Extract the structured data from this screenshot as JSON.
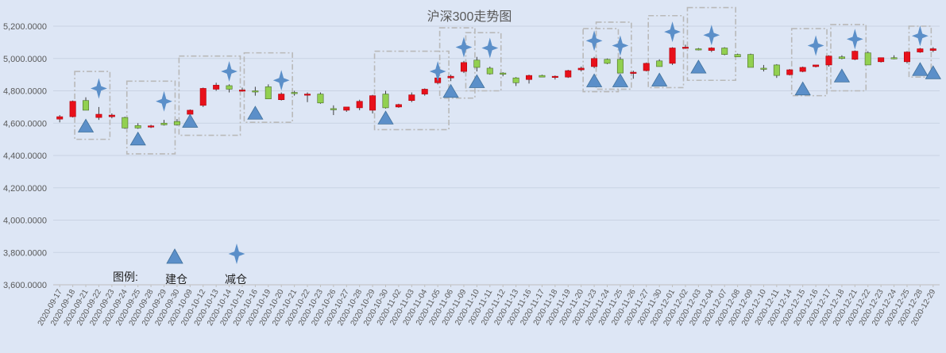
{
  "chart_data": {
    "type": "candlestick",
    "title": "沪深300走势图",
    "ylim": [
      3600,
      5200
    ],
    "ytick_step": 200,
    "grid": true,
    "colors": {
      "up": "#e8101a",
      "down": "#92d050",
      "marker": "#5b8fc9",
      "box": "#b9b9b9",
      "grid": "#c9d3e3"
    },
    "legend": {
      "label": "图例:",
      "build": "建仓",
      "reduce": "减仓"
    },
    "dates": [
      "2020-09-17",
      "2020-09-18",
      "2020-09-21",
      "2020-09-22",
      "2020-09-23",
      "2020-09-24",
      "2020-09-25",
      "2020-09-28",
      "2020-09-29",
      "2020-09-30",
      "2020-10-09",
      "2020-10-12",
      "2020-10-13",
      "2020-10-14",
      "2020-10-15",
      "2020-10-16",
      "2020-10-19",
      "2020-10-20",
      "2020-10-21",
      "2020-10-22",
      "2020-10-23",
      "2020-10-26",
      "2020-10-27",
      "2020-10-28",
      "2020-10-29",
      "2020-10-30",
      "2020-11-02",
      "2020-11-03",
      "2020-11-04",
      "2020-11-05",
      "2020-11-06",
      "2020-11-09",
      "2020-11-10",
      "2020-11-11",
      "2020-11-12",
      "2020-11-13",
      "2020-11-16",
      "2020-11-17",
      "2020-11-18",
      "2020-11-19",
      "2020-11-20",
      "2020-11-23",
      "2020-11-24",
      "2020-11-25",
      "2020-11-26",
      "2020-11-27",
      "2020-11-30",
      "2020-12-01",
      "2020-12-02",
      "2020-12-03",
      "2020-12-04",
      "2020-12-07",
      "2020-12-08",
      "2020-12-09",
      "2020-12-10",
      "2020-12-11",
      "2020-12-14",
      "2020-12-15",
      "2020-12-16",
      "2020-12-17",
      "2020-12-18",
      "2020-12-21",
      "2020-12-22",
      "2020-12-23",
      "2020-12-24",
      "2020-12-25",
      "2020-12-28",
      "2020-12-29"
    ],
    "ohlc": [
      [
        4625,
        4650,
        4605,
        4640
      ],
      [
        4640,
        4740,
        4635,
        4735
      ],
      [
        4740,
        4760,
        4685,
        4680
      ],
      [
        4635,
        4700,
        4620,
        4655
      ],
      [
        4640,
        4660,
        4630,
        4650
      ],
      [
        4635,
        4640,
        4565,
        4570
      ],
      [
        4585,
        4600,
        4565,
        4570
      ],
      [
        4580,
        4590,
        4570,
        4583
      ],
      [
        4600,
        4620,
        4585,
        4590
      ],
      [
        4610,
        4625,
        4585,
        4590
      ],
      [
        4655,
        4685,
        4650,
        4680
      ],
      [
        4710,
        4820,
        4700,
        4815
      ],
      [
        4810,
        4850,
        4800,
        4835
      ],
      [
        4832,
        4840,
        4790,
        4810
      ],
      [
        4800,
        4820,
        4795,
        4805
      ],
      [
        4800,
        4825,
        4770,
        4795
      ],
      [
        4825,
        4840,
        4750,
        4750
      ],
      [
        4745,
        4790,
        4740,
        4780
      ],
      [
        4790,
        4800,
        4770,
        4785
      ],
      [
        4775,
        4790,
        4730,
        4780
      ],
      [
        4780,
        4790,
        4720,
        4725
      ],
      [
        4690,
        4710,
        4650,
        4685
      ],
      [
        4680,
        4695,
        4670,
        4700
      ],
      [
        4695,
        4745,
        4680,
        4735
      ],
      [
        4680,
        4775,
        4660,
        4770
      ],
      [
        4780,
        4800,
        4690,
        4695
      ],
      [
        4700,
        4720,
        4695,
        4715
      ],
      [
        4740,
        4790,
        4730,
        4775
      ],
      [
        4780,
        4815,
        4770,
        4810
      ],
      [
        4850,
        4890,
        4840,
        4880
      ],
      [
        4880,
        4900,
        4860,
        4890
      ],
      [
        4920,
        4985,
        4910,
        4975
      ],
      [
        4990,
        5010,
        4920,
        4945
      ],
      [
        4940,
        4950,
        4900,
        4905
      ],
      [
        4910,
        4915,
        4890,
        4905
      ],
      [
        4880,
        4885,
        4830,
        4850
      ],
      [
        4870,
        4900,
        4845,
        4895
      ],
      [
        4895,
        4900,
        4885,
        4885
      ],
      [
        4885,
        4895,
        4870,
        4890
      ],
      [
        4885,
        4930,
        4880,
        4925
      ],
      [
        4930,
        4950,
        4920,
        4940
      ],
      [
        4950,
        5010,
        4940,
        5000
      ],
      [
        4995,
        5000,
        4965,
        4970
      ],
      [
        4995,
        5010,
        4910,
        4910
      ],
      [
        4910,
        4925,
        4875,
        4915
      ],
      [
        4925,
        4975,
        4920,
        4970
      ],
      [
        4985,
        4995,
        4950,
        4950
      ],
      [
        4970,
        5070,
        4960,
        5065
      ],
      [
        5065,
        5085,
        5060,
        5070
      ],
      [
        5060,
        5065,
        5050,
        5055
      ],
      [
        5050,
        5070,
        5040,
        5065
      ],
      [
        5065,
        5070,
        5020,
        5025
      ],
      [
        5025,
        5030,
        5010,
        5010
      ],
      [
        5025,
        5030,
        4945,
        4945
      ],
      [
        4940,
        4960,
        4920,
        4935
      ],
      [
        4960,
        4965,
        4880,
        4895
      ],
      [
        4900,
        4935,
        4895,
        4930
      ],
      [
        4920,
        4950,
        4915,
        4945
      ],
      [
        4950,
        4960,
        4945,
        4960
      ],
      [
        4960,
        5020,
        4950,
        5015
      ],
      [
        5010,
        5020,
        4995,
        5000
      ],
      [
        4995,
        5050,
        4990,
        5045
      ],
      [
        5035,
        5045,
        4960,
        4960
      ],
      [
        4980,
        5005,
        4975,
        5005
      ],
      [
        5005,
        5020,
        4995,
        5000
      ],
      [
        4980,
        5045,
        4970,
        5040
      ],
      [
        5040,
        5065,
        5035,
        5060
      ],
      [
        5050,
        5070,
        5040,
        5060
      ]
    ],
    "build_markers": [
      {
        "date": "2020-09-21",
        "value": 4580
      },
      {
        "date": "2020-09-25",
        "value": 4500
      },
      {
        "date": "2020-10-09",
        "value": 4610
      },
      {
        "date": "2020-10-16",
        "value": 4660
      },
      {
        "date": "2020-10-30",
        "value": 4630
      },
      {
        "date": "2020-11-06",
        "value": 4795
      },
      {
        "date": "2020-11-10",
        "value": 4855
      },
      {
        "date": "2020-11-23",
        "value": 4860
      },
      {
        "date": "2020-11-25",
        "value": 4860
      },
      {
        "date": "2020-11-30",
        "value": 4865
      },
      {
        "date": "2020-12-03",
        "value": 4945
      },
      {
        "date": "2020-12-15",
        "value": 4810
      },
      {
        "date": "2020-12-18",
        "value": 4890
      },
      {
        "date": "2020-12-28",
        "value": 4930
      },
      {
        "date": "2020-12-29",
        "value": 4910
      }
    ],
    "reduce_markers": [
      {
        "date": "2020-09-22",
        "value": 4815
      },
      {
        "date": "2020-09-29",
        "value": 4735
      },
      {
        "date": "2020-10-14",
        "value": 4920
      },
      {
        "date": "2020-10-20",
        "value": 4865
      },
      {
        "date": "2020-11-05",
        "value": 4920
      },
      {
        "date": "2020-11-09",
        "value": 5070
      },
      {
        "date": "2020-11-11",
        "value": 5065
      },
      {
        "date": "2020-11-23",
        "value": 5110
      },
      {
        "date": "2020-11-25",
        "value": 5080
      },
      {
        "date": "2020-12-01",
        "value": 5165
      },
      {
        "date": "2020-12-04",
        "value": 5145
      },
      {
        "date": "2020-12-16",
        "value": 5080
      },
      {
        "date": "2020-12-21",
        "value": 5120
      },
      {
        "date": "2020-12-28",
        "value": 5140
      }
    ],
    "boxes": [
      {
        "from": "2020-09-21",
        "to": "2020-09-22",
        "low": 4500,
        "high": 4920
      },
      {
        "from": "2020-09-25",
        "to": "2020-09-29",
        "low": 4410,
        "high": 4860
      },
      {
        "from": "2020-10-09",
        "to": "2020-10-14",
        "low": 4525,
        "high": 5015
      },
      {
        "from": "2020-10-16",
        "to": "2020-10-20",
        "low": 4605,
        "high": 5035
      },
      {
        "from": "2020-10-30",
        "to": "2020-11-05",
        "low": 4560,
        "high": 5045
      },
      {
        "from": "2020-11-06",
        "to": "2020-11-09",
        "low": 4755,
        "high": 5190
      },
      {
        "from": "2020-11-10",
        "to": "2020-11-11",
        "low": 4800,
        "high": 5160
      },
      {
        "from": "2020-11-23",
        "to": "2020-11-24",
        "low": 4795,
        "high": 5185
      },
      {
        "from": "2020-11-24",
        "to": "2020-11-25",
        "low": 4810,
        "high": 5225
      },
      {
        "from": "2020-11-30",
        "to": "2020-12-01",
        "low": 4820,
        "high": 5265
      },
      {
        "from": "2020-12-03",
        "to": "2020-12-07",
        "low": 4865,
        "high": 5315
      },
      {
        "from": "2020-12-15",
        "to": "2020-12-16",
        "low": 4770,
        "high": 5185
      },
      {
        "from": "2020-12-18",
        "to": "2020-12-21",
        "low": 4800,
        "high": 5210
      },
      {
        "from": "2020-12-28",
        "to": "2020-12-28",
        "low": 4885,
        "high": 5200
      }
    ]
  }
}
